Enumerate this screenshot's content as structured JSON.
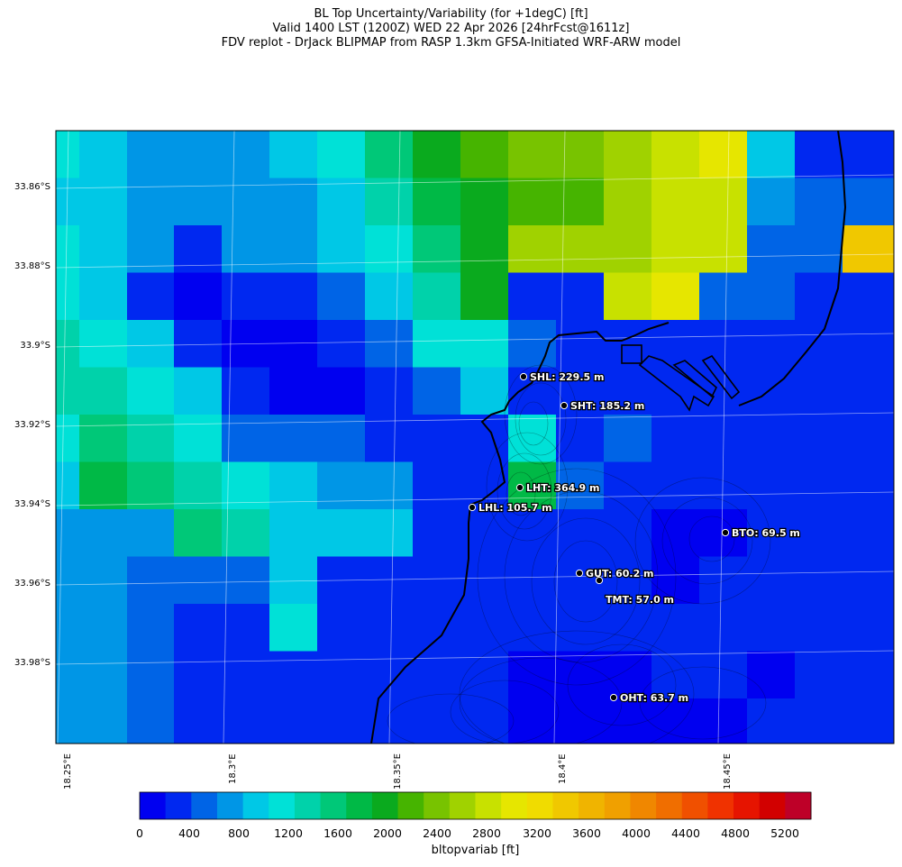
{
  "title": {
    "line1": "BL Top Uncertainty/Variability (for +1degC) [ft]",
    "line2": "Valid 1400 LST (1200Z) WED 22 Apr 2026 [24hrFcst@1611z]",
    "line3": "FDV replot - DrJack BLIPMAP from RASP 1.3km GFSA-Initiated WRF-ARW model"
  },
  "lat_labels": [
    "33.86°S",
    "33.88°S",
    "33.9°S",
    "33.92°S",
    "33.94°S",
    "33.96°S",
    "33.98°S"
  ],
  "lon_labels": [
    "18.25°E",
    "18.3°E",
    "18.35°E",
    "18.4°E",
    "18.45°E"
  ],
  "colorbar": {
    "label": "bltopvariab [ft]",
    "ticks": [
      "0",
      "400",
      "800",
      "1200",
      "1600",
      "2000",
      "2400",
      "2800",
      "3200",
      "3600",
      "4000",
      "4400",
      "4800",
      "5200"
    ],
    "colors": [
      "#0000f0",
      "#0028f0",
      "#0064e6",
      "#0096e6",
      "#00c8e6",
      "#00e1d7",
      "#00d2aa",
      "#00c878",
      "#00b946",
      "#0aaa1e",
      "#46b400",
      "#78c300",
      "#a0d200",
      "#c8e100",
      "#e6e600",
      "#f0dc00",
      "#f0c800",
      "#f0b400",
      "#f0a000",
      "#f08700",
      "#f06e00",
      "#f05000",
      "#f03200",
      "#e61400",
      "#d20000",
      "#be0028"
    ]
  },
  "grid": {
    "rows": [
      [
        5,
        4,
        3,
        3,
        3,
        4,
        5,
        7,
        9,
        10,
        11,
        11,
        12,
        13,
        14,
        4,
        1,
        1
      ],
      [
        4,
        4,
        3,
        3,
        3,
        3,
        4,
        6,
        8,
        9,
        10,
        10,
        12,
        13,
        13,
        3,
        2,
        2
      ],
      [
        5,
        4,
        3,
        1,
        3,
        3,
        4,
        5,
        7,
        9,
        12,
        12,
        12,
        13,
        13,
        2,
        2,
        16
      ],
      [
        5,
        4,
        1,
        0,
        1,
        1,
        2,
        4,
        6,
        9,
        1,
        1,
        13,
        14,
        2,
        2,
        1,
        1
      ],
      [
        6,
        5,
        4,
        1,
        0,
        0,
        1,
        2,
        5,
        5,
        2,
        1,
        1,
        1,
        1,
        1,
        1,
        1
      ],
      [
        6,
        6,
        5,
        4,
        1,
        0,
        0,
        1,
        2,
        4,
        1,
        1,
        1,
        1,
        1,
        1,
        1,
        1
      ],
      [
        5,
        7,
        6,
        5,
        2,
        2,
        2,
        1,
        1,
        1,
        5,
        1,
        2,
        1,
        1,
        1,
        1,
        1
      ],
      [
        4,
        8,
        7,
        6,
        5,
        4,
        3,
        3,
        1,
        1,
        8,
        2,
        1,
        1,
        1,
        1,
        1,
        1
      ],
      [
        3,
        3,
        3,
        7,
        6,
        4,
        4,
        4,
        1,
        1,
        1,
        1,
        1,
        0,
        0,
        1,
        1,
        1
      ],
      [
        3,
        3,
        2,
        2,
        2,
        4,
        1,
        1,
        1,
        1,
        1,
        1,
        1,
        0,
        1,
        1,
        1,
        1
      ],
      [
        3,
        3,
        2,
        1,
        1,
        5,
        1,
        1,
        1,
        1,
        1,
        1,
        1,
        1,
        1,
        1,
        1,
        1
      ],
      [
        3,
        3,
        2,
        1,
        1,
        1,
        1,
        1,
        1,
        1,
        0,
        0,
        0,
        1,
        1,
        0,
        1,
        1
      ],
      [
        3,
        3,
        2,
        1,
        1,
        1,
        1,
        1,
        1,
        1,
        0,
        0,
        0,
        0,
        0,
        1,
        1,
        1
      ],
      [
        3,
        4,
        3,
        1,
        1,
        1,
        1,
        1,
        1,
        1,
        1,
        0,
        1,
        1,
        1,
        1,
        1,
        1
      ]
    ]
  },
  "stations": [
    {
      "id": "SHL",
      "text": "SHL: 229.5 m"
    },
    {
      "id": "SHT",
      "text": "SHT: 185.2 m"
    },
    {
      "id": "LHT",
      "text": "LHT: 364.9 m"
    },
    {
      "id": "LHL",
      "text": "LHL: 105.7 m"
    },
    {
      "id": "BTO",
      "text": "BTO: 69.5 m"
    },
    {
      "id": "GUT",
      "text": "GUT: 60.2 m"
    },
    {
      "id": "TMT",
      "text": "TMT: 57.0 m"
    },
    {
      "id": "OHT",
      "text": "OHT: 63.7 m"
    }
  ]
}
